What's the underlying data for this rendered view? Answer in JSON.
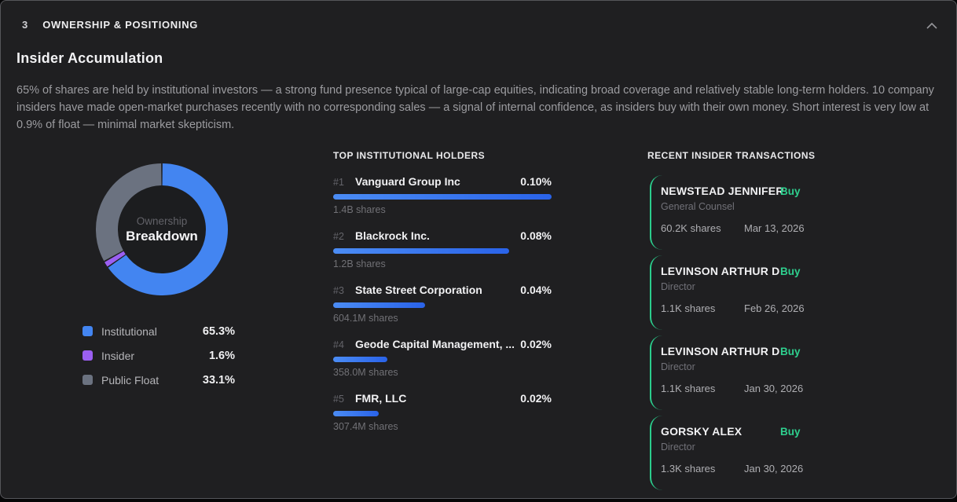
{
  "panel": {
    "section_number": "3",
    "section_title": "OWNERSHIP & POSITIONING",
    "title": "Insider Accumulation",
    "description": "65% of shares are held by institutional investors — a strong fund presence typical of large-cap equities, indicating broad coverage and relatively stable long-term holders. 10 company insiders have made open-market purchases recently with no corresponding sales — a signal of internal confidence, as insiders buy with their own money. Short interest is very low at 0.9% of float — minimal market skepticism."
  },
  "ownership_chart": {
    "center_label_top": "Ownership",
    "center_label_bottom": "Breakdown",
    "segments": [
      {
        "label": "Institutional",
        "value": 65.3,
        "display": "65.3%",
        "color": "#4385f1"
      },
      {
        "label": "Insider",
        "value": 1.6,
        "display": "1.6%",
        "color": "#9b5ff2"
      },
      {
        "label": "Public Float",
        "value": 33.1,
        "display": "33.1%",
        "color": "#6b7280"
      }
    ]
  },
  "chart_data": {
    "type": "pie",
    "title": "Ownership Breakdown",
    "donut": true,
    "labels": [
      "Institutional",
      "Insider",
      "Public Float"
    ],
    "values": [
      65.3,
      1.6,
      33.1
    ],
    "colors": [
      "#4385f1",
      "#9b5ff2",
      "#6b7280"
    ],
    "legend_position": "bottom"
  },
  "holders": {
    "heading": "TOP INSTITUTIONAL HOLDERS",
    "items": [
      {
        "rank": "#1",
        "name": "Vanguard Group Inc",
        "pct": "0.10%",
        "bar_pct": 100,
        "shares": "1.4B shares"
      },
      {
        "rank": "#2",
        "name": "Blackrock Inc.",
        "pct": "0.08%",
        "bar_pct": 80.6,
        "shares": "1.2B shares"
      },
      {
        "rank": "#3",
        "name": "State Street Corporation",
        "pct": "0.04%",
        "bar_pct": 42,
        "shares": "604.1M shares"
      },
      {
        "rank": "#4",
        "name": "Geode Capital Management, ...",
        "pct": "0.02%",
        "bar_pct": 24.8,
        "shares": "358.0M shares"
      },
      {
        "rank": "#5",
        "name": "FMR, LLC",
        "pct": "0.02%",
        "bar_pct": 21,
        "shares": "307.4M shares"
      }
    ]
  },
  "transactions": {
    "heading": "RECENT INSIDER TRANSACTIONS",
    "items": [
      {
        "name": "NEWSTEAD JENNIFER",
        "action": "Buy",
        "role": "General Counsel",
        "shares": "60.2K shares",
        "date": "Mar 13, 2026"
      },
      {
        "name": "LEVINSON ARTHUR D",
        "action": "Buy",
        "role": "Director",
        "shares": "1.1K shares",
        "date": "Feb 26, 2026"
      },
      {
        "name": "LEVINSON ARTHUR D",
        "action": "Buy",
        "role": "Director",
        "shares": "1.1K shares",
        "date": "Jan 30, 2026"
      },
      {
        "name": "GORSKY ALEX",
        "action": "Buy",
        "role": "Director",
        "shares": "1.3K shares",
        "date": "Jan 30, 2026"
      }
    ]
  },
  "colors": {
    "panel_bg": "#1f1f21",
    "panel_border": "#55565a",
    "bar_gradient_start": "#4b8cf4",
    "bar_gradient_end": "#2a63e9",
    "buy_green": "#2ecf8e",
    "institutional_blue": "#4385f1",
    "insider_purple": "#9b5ff2",
    "public_float_gray": "#6b7280"
  }
}
